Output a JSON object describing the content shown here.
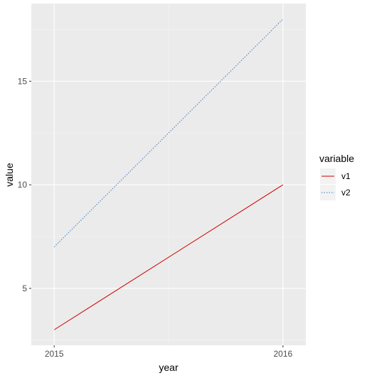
{
  "chart_data": {
    "type": "line",
    "title": "",
    "xlabel": "year",
    "ylabel": "value",
    "x": [
      2015,
      2016
    ],
    "x_tick_labels": [
      "2015",
      "2016"
    ],
    "xlim": [
      2014.9,
      2016.1
    ],
    "ylim": [
      2.25,
      18.75
    ],
    "y_ticks": [
      5,
      10,
      15
    ],
    "y_tick_labels": [
      "5",
      "10",
      "15"
    ],
    "grid": true,
    "legend": {
      "title": "variable",
      "position": "right"
    },
    "series": [
      {
        "name": "v1",
        "values": [
          3,
          10
        ],
        "color": "#cc0000",
        "linestyle": "solid"
      },
      {
        "name": "v2",
        "values": [
          7,
          18
        ],
        "color": "#3a78c2",
        "linestyle": "dotted"
      }
    ],
    "panel_background": "#ebebeb",
    "grid_color": "#ffffff"
  }
}
